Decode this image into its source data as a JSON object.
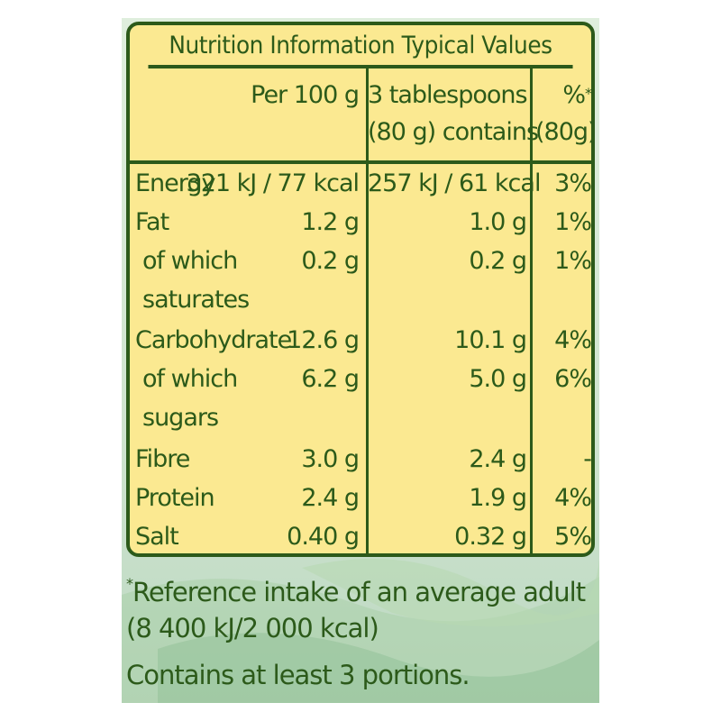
{
  "title": "Nutrition Information Typical Values",
  "columns": {
    "per100": "Per 100 g",
    "serving_line1": "3 tablespoons",
    "serving_line2": "(80 g) contains",
    "ri_line1": "%",
    "ri_asterisk": "*",
    "ri_line2": "(80g)"
  },
  "rows": [
    {
      "label": "Energy",
      "per100": "321 kJ / 77 kcal",
      "serving": "257 kJ / 61 kcal",
      "ri": "3%"
    },
    {
      "label": "Fat",
      "per100": "1.2 g",
      "serving": "1.0 g",
      "ri": "1%"
    },
    {
      "label": "of which",
      "label2": "saturates",
      "per100": "0.2 g",
      "serving": "0.2 g",
      "ri": "1%"
    },
    {
      "label": "Carbohydrate",
      "per100": "12.6 g",
      "serving": "10.1 g",
      "ri": "4%"
    },
    {
      "label": "of which",
      "label2": "sugars",
      "per100": "6.2 g",
      "serving": "5.0 g",
      "ri": "6%"
    },
    {
      "label": "Fibre",
      "per100": "3.0 g",
      "serving": "2.4 g",
      "ri": "-"
    },
    {
      "label": "Protein",
      "per100": "2.4 g",
      "serving": "1.9 g",
      "ri": "4%"
    },
    {
      "label": "Salt",
      "per100": "0.40 g",
      "serving": "0.32 g",
      "ri": "5%"
    }
  ],
  "footer": {
    "asterisk": "*",
    "reference_line1": "Reference intake of an average adult",
    "reference_line2": "(8 400 kJ/2 000 kcal)",
    "portions": "Contains at least 3 portions."
  },
  "colors": {
    "text": "#2c5a1a",
    "table_bg": "#fbe991",
    "panel_bg": "#cfe4cf"
  }
}
